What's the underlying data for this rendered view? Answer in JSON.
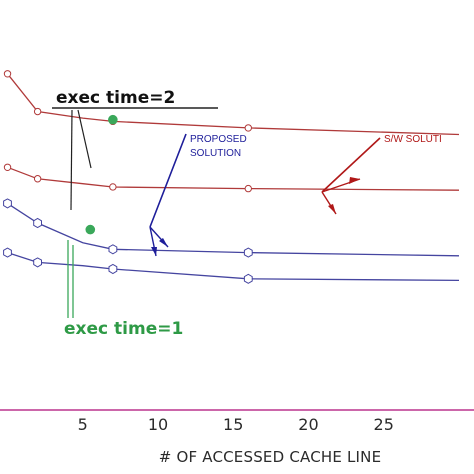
{
  "chart_data": {
    "type": "line",
    "title": "",
    "xlabel": "# OF ACCESSED CACHE LINE",
    "ylabel": "",
    "xlim": [
      -0.5,
      31
    ],
    "ylim": [
      0,
      25
    ],
    "x_ticks": [
      "5",
      "10",
      "15",
      "20",
      "25"
    ],
    "grid": false,
    "axis_color": "#cc66aa",
    "series": [
      {
        "group": "sw",
        "color": "#b03a3a",
        "x": [
          0,
          2,
          5,
          7,
          16,
          30
        ],
        "y": [
          20.5,
          18.2,
          17.8,
          17.6,
          17.2,
          16.8
        ],
        "markers": [
          true,
          true,
          false,
          true,
          true,
          false
        ]
      },
      {
        "group": "sw",
        "color": "#b03a3a",
        "x": [
          0,
          2,
          5,
          7,
          16,
          30
        ],
        "y": [
          14.8,
          14.1,
          13.8,
          13.6,
          13.5,
          13.4
        ],
        "markers": [
          true,
          true,
          false,
          true,
          true,
          false
        ]
      },
      {
        "group": "proposed",
        "color": "#4545a0",
        "x": [
          0,
          2,
          5,
          7,
          16,
          30
        ],
        "y": [
          12.6,
          11.4,
          10.2,
          9.8,
          9.6,
          9.4
        ],
        "markers": [
          true,
          true,
          false,
          true,
          true,
          false
        ]
      },
      {
        "group": "proposed",
        "color": "#4545a0",
        "x": [
          0,
          2,
          5,
          7,
          16,
          30
        ],
        "y": [
          9.6,
          9.0,
          8.8,
          8.6,
          8.0,
          7.9
        ],
        "markers": [
          true,
          true,
          false,
          true,
          true,
          false
        ]
      }
    ],
    "highlight_points": [
      {
        "x": 7,
        "y": 17.7,
        "color": "#3aa85a"
      },
      {
        "x": 5.5,
        "y": 11.0,
        "color": "#3aa85a"
      }
    ],
    "annotations": [
      {
        "id": "exec2",
        "text": "exec  time=2"
      },
      {
        "id": "exec1",
        "text": "exec  time=1"
      },
      {
        "id": "proposed",
        "lines": [
          "PROPOSED",
          "SOLUTION"
        ]
      },
      {
        "id": "sw",
        "text": "S/W SOLUTI"
      }
    ]
  }
}
